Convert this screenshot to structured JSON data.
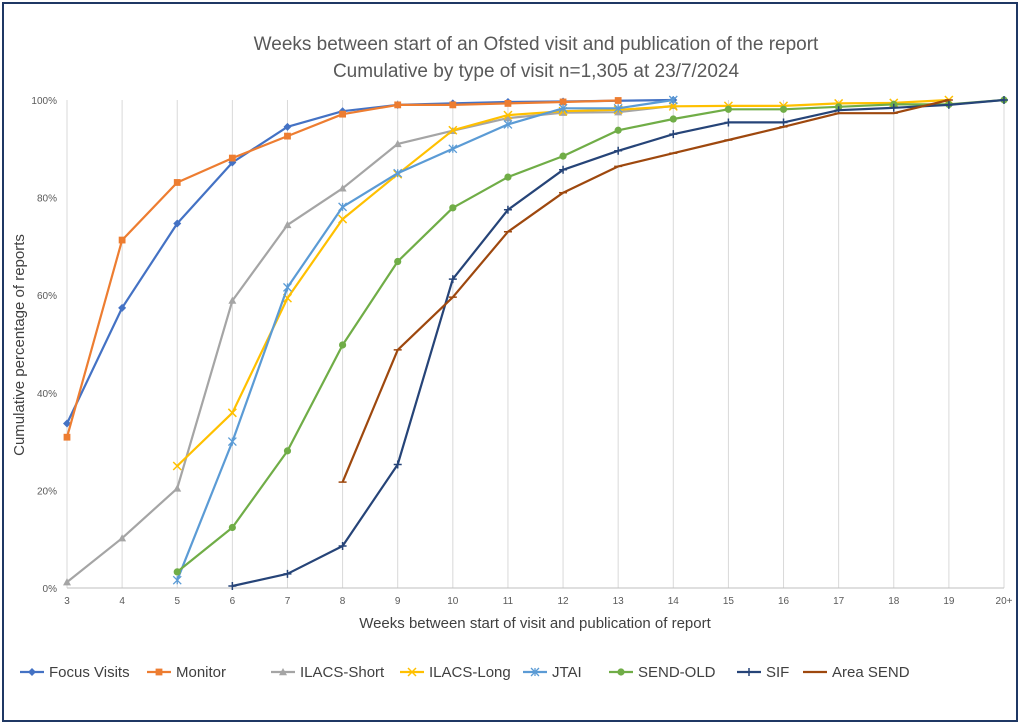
{
  "chart_data": {
    "type": "line",
    "title": "Weeks between start of an Ofsted visit and publication of the report",
    "subtitle": "Cumulative by type of visit n=1,305 at 23/7/2024",
    "xlabel": "Weeks between start of visit and publication of report",
    "ylabel": "Cumulative percentage of reports",
    "categories": [
      "3",
      "4",
      "5",
      "6",
      "7",
      "8",
      "9",
      "10",
      "11",
      "12",
      "13",
      "14",
      "15",
      "16",
      "17",
      "18",
      "19",
      "20+"
    ],
    "yticks": [
      "0%",
      "20%",
      "40%",
      "60%",
      "80%",
      "100%"
    ],
    "ylim": [
      0,
      100
    ],
    "grid": "vertical",
    "legend": "bottom",
    "series": [
      {
        "name": "Focus Visits",
        "color": "#4472c4",
        "marker": "diamond",
        "values": [
          33.7,
          57.4,
          74.7,
          87.2,
          94.5,
          97.7,
          99.0,
          99.3,
          99.6,
          99.7,
          null,
          100,
          null,
          null,
          null,
          null,
          null,
          null
        ]
      },
      {
        "name": "Monitor",
        "color": "#ed7d31",
        "marker": "square",
        "values": [
          30.9,
          71.3,
          83.1,
          88.1,
          92.6,
          97.1,
          99.0,
          99.0,
          99.3,
          99.6,
          99.9,
          null,
          null,
          null,
          null,
          null,
          null,
          null
        ]
      },
      {
        "name": "ILACS-Short",
        "color": "#a5a5a5",
        "marker": "triangle",
        "values": [
          1.2,
          10.2,
          20.4,
          58.9,
          74.4,
          81.9,
          91.0,
          93.7,
          96.3,
          97.4,
          97.5,
          98.8,
          null,
          null,
          null,
          null,
          null,
          null
        ]
      },
      {
        "name": "ILACS-Long",
        "color": "#ffc000",
        "marker": "x",
        "values": [
          null,
          null,
          25.0,
          35.9,
          59.4,
          75.6,
          84.8,
          93.8,
          96.9,
          97.7,
          98.0,
          98.7,
          98.8,
          98.8,
          99.3,
          99.4,
          100,
          null
        ]
      },
      {
        "name": "JTAI",
        "color": "#5b9bd5",
        "marker": "asterisk",
        "values": [
          null,
          null,
          1.6,
          30.0,
          61.6,
          78.1,
          85.0,
          90.0,
          95.0,
          98.3,
          98.3,
          100,
          null,
          null,
          null,
          null,
          null,
          null
        ]
      },
      {
        "name": "SEND-OLD",
        "color": "#70ad47",
        "marker": "circle",
        "values": [
          null,
          null,
          3.3,
          12.4,
          28.1,
          49.8,
          66.9,
          77.9,
          84.2,
          88.5,
          93.8,
          96.1,
          98.1,
          98.1,
          98.6,
          99.1,
          99.1,
          100
        ]
      },
      {
        "name": "SIF",
        "color": "#264478",
        "marker": "plus",
        "values": [
          null,
          null,
          null,
          0.4,
          2.9,
          8.6,
          25.3,
          63.3,
          77.5,
          85.7,
          89.6,
          93.0,
          95.4,
          95.4,
          97.9,
          98.4,
          99.0,
          100
        ]
      },
      {
        "name": "Area SEND",
        "color": "#9e480e",
        "marker": "dash",
        "values": [
          null,
          null,
          null,
          null,
          null,
          21.7,
          48.8,
          59.6,
          73.0,
          81.0,
          86.4,
          89.1,
          91.8,
          94.5,
          97.3,
          97.3,
          100,
          null
        ]
      }
    ]
  }
}
